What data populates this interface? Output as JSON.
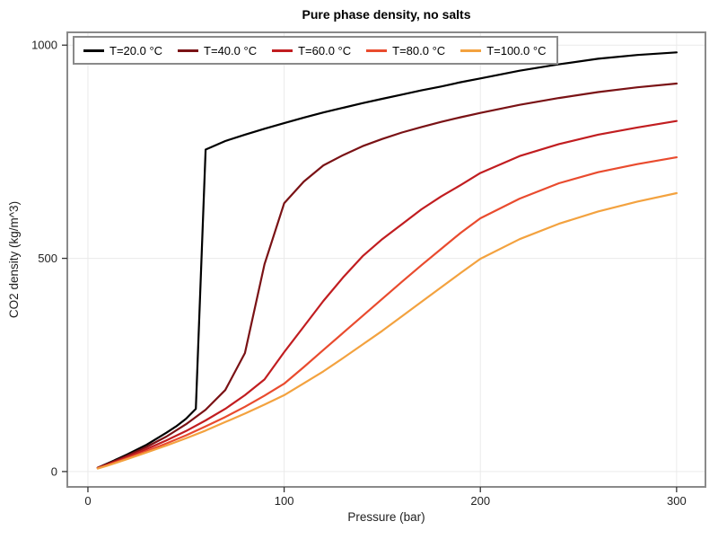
{
  "title": "Pure phase density, no salts",
  "axes": {
    "xlabel": "Pressure (bar)",
    "ylabel": "CO2 density (kg/m^3)"
  },
  "colors": {
    "background": "#ffffff",
    "frame": "#8a8a8a",
    "grid": "#eaeaea",
    "tick": "#333333",
    "text": "#1f1f1f"
  },
  "chart_data": {
    "type": "line",
    "title": "Pure phase density, no salts",
    "xlabel": "Pressure (bar)",
    "ylabel": "CO2 density (kg/m^3)",
    "xlim": [
      -10.5,
      314.7
    ],
    "ylim": [
      -36,
      1030
    ],
    "xticks": [
      0,
      100,
      200,
      300
    ],
    "yticks": [
      0,
      500,
      1000
    ],
    "grid": true,
    "legend_position": "top-left",
    "series": [
      {
        "name": "T=20.0 °C",
        "color": "#000000",
        "x": [
          5,
          10,
          20,
          30,
          40,
          45,
          50,
          55,
          60,
          70,
          80,
          90,
          100,
          110,
          120,
          130,
          140,
          150,
          160,
          170,
          180,
          190,
          200,
          220,
          240,
          260,
          280,
          300
        ],
        "y": [
          9,
          19,
          40,
          63,
          91,
          106,
          124,
          147,
          755,
          775,
          790,
          804,
          817,
          830,
          842,
          853,
          864,
          874,
          884,
          894,
          903,
          913,
          922,
          940,
          955,
          968,
          977,
          983
        ]
      },
      {
        "name": "T=40.0 °C",
        "color": "#7a1215",
        "x": [
          5,
          10,
          20,
          30,
          40,
          50,
          60,
          70,
          80,
          90,
          100,
          110,
          120,
          130,
          140,
          150,
          160,
          170,
          180,
          190,
          200,
          220,
          240,
          260,
          280,
          300
        ],
        "y": [
          9,
          18,
          37,
          58,
          82,
          111,
          145,
          191,
          278,
          486,
          629,
          680,
          718,
          742,
          763,
          780,
          795,
          808,
          820,
          831,
          841,
          860,
          876,
          890,
          901,
          910
        ]
      },
      {
        "name": "T=60.0 °C",
        "color": "#c11d20",
        "x": [
          5,
          10,
          20,
          30,
          40,
          50,
          60,
          70,
          80,
          90,
          100,
          110,
          120,
          130,
          140,
          150,
          160,
          170,
          180,
          190,
          200,
          220,
          240,
          260,
          280,
          300
        ],
        "y": [
          8,
          16,
          34,
          53,
          73,
          95,
          120,
          147,
          179,
          216,
          280,
          340,
          400,
          455,
          505,
          545,
          580,
          615,
          645,
          672,
          700,
          740,
          768,
          790,
          807,
          822
        ]
      },
      {
        "name": "T=80.0 °C",
        "color": "#e94b2e",
        "x": [
          5,
          10,
          20,
          30,
          40,
          50,
          60,
          70,
          80,
          90,
          100,
          110,
          120,
          130,
          140,
          150,
          160,
          170,
          180,
          190,
          200,
          220,
          240,
          260,
          280,
          300
        ],
        "y": [
          8,
          15,
          31,
          48,
          66,
          85,
          106,
          128,
          152,
          178,
          206,
          245,
          285,
          325,
          365,
          405,
          445,
          484,
          522,
          560,
          594,
          640,
          676,
          702,
          721,
          737
        ]
      },
      {
        "name": "T=100.0 °C",
        "color": "#f3a23f",
        "x": [
          5,
          10,
          20,
          30,
          40,
          50,
          60,
          70,
          80,
          90,
          100,
          110,
          120,
          130,
          140,
          150,
          160,
          170,
          180,
          190,
          200,
          220,
          240,
          260,
          280,
          300
        ],
        "y": [
          7,
          14,
          29,
          45,
          61,
          78,
          96,
          116,
          136,
          157,
          179,
          207,
          235,
          266,
          298,
          330,
          364,
          398,
          432,
          466,
          499,
          545,
          581,
          610,
          633,
          653
        ]
      }
    ]
  }
}
